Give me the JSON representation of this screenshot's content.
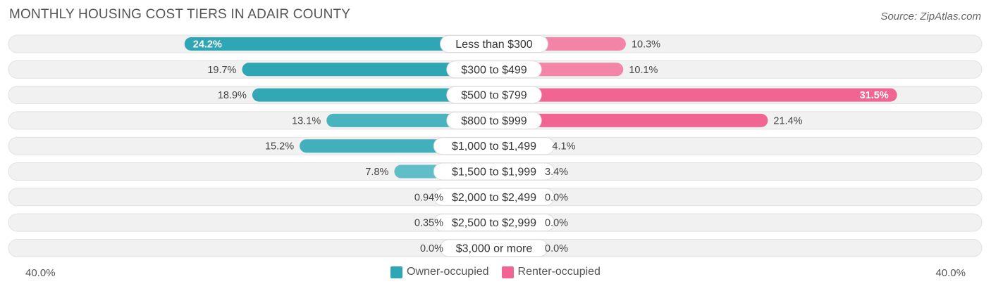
{
  "title": "MONTHLY HOUSING COST TIERS IN ADAIR COUNTY",
  "source": "Source: ZipAtlas.com",
  "colors": {
    "owner_dark": "#2fa6b4",
    "owner_light": "#7ecdd5",
    "renter_dark": "#f06592",
    "renter_light": "#f7a6c0",
    "row_bg": "#f1f1f1"
  },
  "legend": {
    "owner_label": "Owner-occupied",
    "renter_label": "Renter-occupied"
  },
  "axis": {
    "left_label": "40.0%",
    "right_label": "40.0%"
  },
  "chart_data": {
    "type": "bar",
    "orientation": "diverging-horizontal",
    "categories": [
      "Less than $300",
      "$300 to $499",
      "$500 to $799",
      "$800 to $999",
      "$1,000 to $1,499",
      "$1,500 to $1,999",
      "$2,000 to $2,499",
      "$2,500 to $2,999",
      "$3,000 or more"
    ],
    "series": [
      {
        "name": "Owner-occupied",
        "values": [
          24.2,
          19.7,
          18.9,
          13.1,
          15.2,
          7.8,
          0.94,
          0.35,
          0.0
        ],
        "labels": [
          "24.2%",
          "19.7%",
          "18.9%",
          "13.1%",
          "15.2%",
          "7.8%",
          "0.94%",
          "0.35%",
          "0.0%"
        ]
      },
      {
        "name": "Renter-occupied",
        "values": [
          10.3,
          10.1,
          31.5,
          21.4,
          4.1,
          3.4,
          0.0,
          0.0,
          0.0
        ],
        "labels": [
          "10.3%",
          "10.1%",
          "31.5%",
          "21.4%",
          "4.1%",
          "3.4%",
          "0.0%",
          "0.0%",
          "0.0%"
        ]
      }
    ],
    "xlim": [
      -40,
      40
    ],
    "grid": false,
    "legend_position": "bottom-center"
  }
}
